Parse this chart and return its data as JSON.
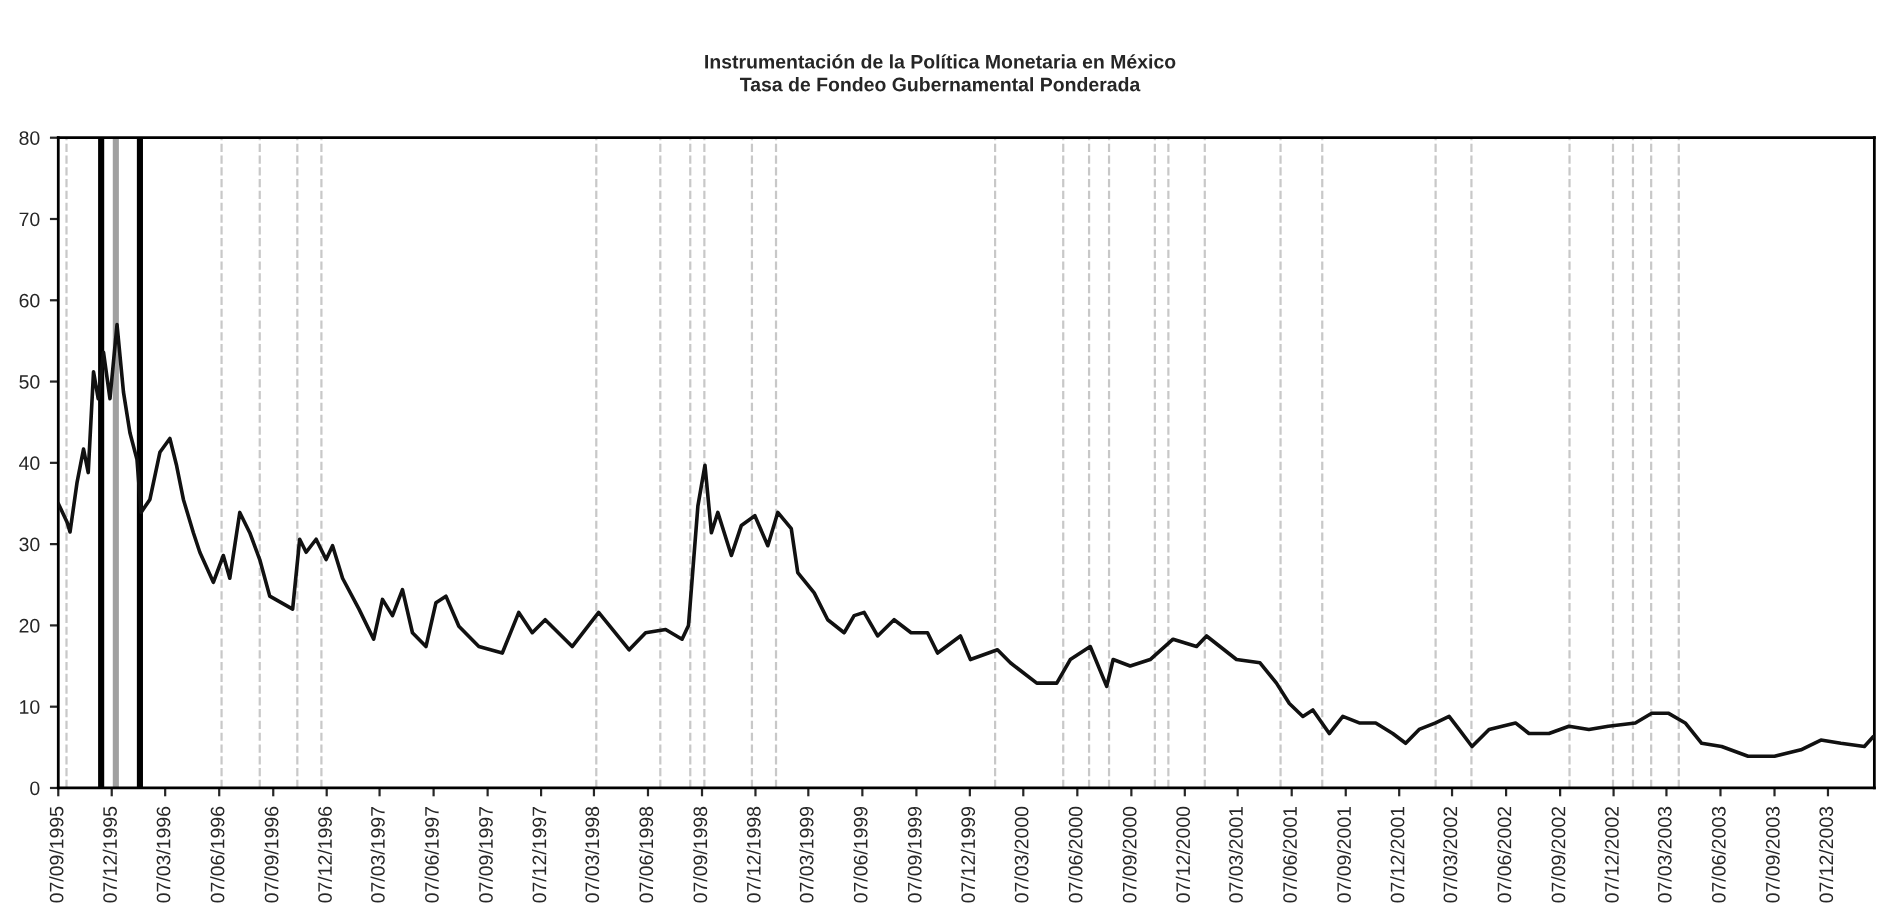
{
  "chart_data": {
    "type": "line",
    "title": "Instrumentación de la Política Monetaria en México",
    "subtitle": "Tasa de Fondeo Gubernamental Ponderada",
    "series": [
      {
        "color": "#111111",
        "x": [
          "1995-09-07",
          "1995-09-22",
          "1995-09-27",
          "1995-10-09",
          "1995-10-20",
          "1995-10-28",
          "1995-11-06",
          "1995-11-14",
          "1995-11-23",
          "1995-12-04",
          "1995-12-16",
          "1995-12-27",
          "1996-01-07",
          "1996-01-19",
          "1996-01-26",
          "1996-02-10",
          "1996-02-27",
          "1996-03-15",
          "1996-03-26",
          "1996-04-07",
          "1996-04-24",
          "1996-05-05",
          "1996-05-28",
          "1996-06-14",
          "1996-06-25",
          "1996-07-12",
          "1996-07-29",
          "1996-08-15",
          "1996-09-01",
          "1996-10-10",
          "1996-10-22",
          "1996-11-02",
          "1996-11-19",
          "1996-12-06",
          "1996-12-17",
          "1997-01-03",
          "1997-01-31",
          "1997-02-25",
          "1997-03-12",
          "1997-03-29",
          "1997-04-15",
          "1997-05-02",
          "1997-05-25",
          "1997-06-11",
          "1997-06-28",
          "1997-07-20",
          "1997-08-23",
          "1997-10-02",
          "1997-10-30",
          "1997-11-22",
          "1997-12-14",
          "1998-01-29",
          "1998-03-15",
          "1998-05-06",
          "1998-06-03",
          "1998-07-07",
          "1998-08-04",
          "1998-08-15",
          "1998-08-31",
          "1998-09-12",
          "1998-09-23",
          "1998-10-04",
          "1998-10-27",
          "1998-11-13",
          "1998-12-06",
          "1998-12-28",
          "1999-01-14",
          "1999-02-06",
          "1999-02-17",
          "1999-03-17",
          "1999-04-09",
          "1999-05-07",
          "1999-05-24",
          "1999-06-10",
          "1999-07-03",
          "1999-07-31",
          "1999-08-29",
          "1999-09-26",
          "1999-10-13",
          "1999-11-21",
          "1999-12-08",
          "2000-01-23",
          "2000-02-14",
          "2000-03-30",
          "2000-05-03",
          "2000-05-26",
          "2000-06-29",
          "2000-07-27",
          "2000-08-07",
          "2000-09-05",
          "2000-10-09",
          "2000-11-17",
          "2000-12-27",
          "2001-01-13",
          "2001-03-05",
          "2001-04-14",
          "2001-05-12",
          "2001-06-03",
          "2001-06-26",
          "2001-07-13",
          "2001-08-10",
          "2001-09-02",
          "2001-09-30",
          "2001-10-28",
          "2001-11-26",
          "2001-12-18",
          "2002-01-10",
          "2002-02-07",
          "2002-03-02",
          "2002-03-19",
          "2002-04-10",
          "2002-05-09",
          "2002-06-23",
          "2002-07-16",
          "2002-08-19",
          "2002-09-22",
          "2002-10-26",
          "2002-11-28",
          "2003-01-13",
          "2003-02-10",
          "2003-03-10",
          "2003-04-08",
          "2003-05-06",
          "2003-06-09",
          "2003-07-24",
          "2003-09-07",
          "2003-10-22",
          "2003-11-25",
          "2003-12-29",
          "2004-02-07",
          "2004-02-22"
        ],
        "values": [
          35,
          32.7,
          31.5,
          37.6,
          41.7,
          38.8,
          51.2,
          47.9,
          53.6,
          47.9,
          57,
          48.7,
          43.7,
          40.4,
          33.9,
          35.5,
          41.3,
          43,
          39.8,
          35.5,
          31.4,
          29,
          25.3,
          28.6,
          25.8,
          33.9,
          31.4,
          28.1,
          23.6,
          22,
          30.6,
          29,
          30.6,
          28.1,
          29.8,
          25.8,
          22,
          18.3,
          23.2,
          21.2,
          24.4,
          19.1,
          17.4,
          22.8,
          23.6,
          19.9,
          17.4,
          16.6,
          21.6,
          19.1,
          20.7,
          17.4,
          21.6,
          17,
          19.1,
          19.5,
          18.3,
          20,
          34.7,
          39.7,
          31.4,
          33.9,
          28.6,
          32.3,
          33.5,
          29.8,
          33.9,
          31.9,
          26.5,
          24,
          20.7,
          19.1,
          21.2,
          21.6,
          18.7,
          20.7,
          19.1,
          19.1,
          16.6,
          18.7,
          15.8,
          17,
          15.4,
          12.9,
          12.9,
          15.8,
          17.4,
          12.5,
          15.8,
          15,
          15.8,
          18.3,
          17.4,
          18.7,
          15.8,
          15.4,
          12.9,
          10.4,
          8.8,
          9.6,
          6.7,
          8.8,
          8,
          8,
          6.7,
          5.5,
          7.2,
          8,
          8.8,
          7.2,
          5.1,
          7.2,
          8,
          6.7,
          6.7,
          7.6,
          7.2,
          7.6,
          8,
          9.2,
          9.2,
          8,
          5.5,
          5.1,
          3.9,
          3.9,
          4.7,
          5.9,
          5.5,
          5.1,
          6.3
        ]
      }
    ],
    "xlim": [
      "1995-09-07",
      "2004-02-24"
    ],
    "xticks": [
      {
        "value": "1995-09-07",
        "label": "07/09/1995"
      },
      {
        "value": "1995-12-07",
        "label": "07/12/1995"
      },
      {
        "value": "1996-03-07",
        "label": "07/03/1996"
      },
      {
        "value": "1996-06-07",
        "label": "07/06/1996"
      },
      {
        "value": "1996-09-07",
        "label": "07/09/1996"
      },
      {
        "value": "1996-12-07",
        "label": "07/12/1996"
      },
      {
        "value": "1997-03-07",
        "label": "07/03/1997"
      },
      {
        "value": "1997-06-07",
        "label": "07/06/1997"
      },
      {
        "value": "1997-09-07",
        "label": "07/09/1997"
      },
      {
        "value": "1997-12-07",
        "label": "07/12/1997"
      },
      {
        "value": "1998-03-07",
        "label": "07/03/1998"
      },
      {
        "value": "1998-06-07",
        "label": "07/06/1998"
      },
      {
        "value": "1998-09-07",
        "label": "07/09/1998"
      },
      {
        "value": "1998-12-07",
        "label": "07/12/1998"
      },
      {
        "value": "1999-03-07",
        "label": "07/03/1999"
      },
      {
        "value": "1999-06-07",
        "label": "07/06/1999"
      },
      {
        "value": "1999-09-07",
        "label": "07/09/1999"
      },
      {
        "value": "1999-12-07",
        "label": "07/12/1999"
      },
      {
        "value": "2000-03-07",
        "label": "07/03/2000"
      },
      {
        "value": "2000-06-07",
        "label": "07/06/2000"
      },
      {
        "value": "2000-09-07",
        "label": "07/09/2000"
      },
      {
        "value": "2000-12-07",
        "label": "07/12/2000"
      },
      {
        "value": "2001-03-07",
        "label": "07/03/2001"
      },
      {
        "value": "2001-06-07",
        "label": "07/06/2001"
      },
      {
        "value": "2001-09-07",
        "label": "07/09/2001"
      },
      {
        "value": "2001-12-07",
        "label": "07/12/2001"
      },
      {
        "value": "2002-03-07",
        "label": "07/03/2002"
      },
      {
        "value": "2002-06-07",
        "label": "07/06/2002"
      },
      {
        "value": "2002-09-07",
        "label": "07/09/2002"
      },
      {
        "value": "2002-12-07",
        "label": "07/12/2002"
      },
      {
        "value": "2003-03-07",
        "label": "07/03/2003"
      },
      {
        "value": "2003-06-07",
        "label": "07/06/2003"
      },
      {
        "value": "2003-09-07",
        "label": "07/09/2003"
      },
      {
        "value": "2003-12-07",
        "label": "07/12/2003"
      }
    ],
    "ylim": [
      0,
      80
    ],
    "yticks": [
      0,
      10,
      20,
      30,
      40,
      50,
      60,
      70,
      80
    ],
    "ref_lines": [
      {
        "axis": "x",
        "value": "1995-09-21",
        "color": "#c8c8c8",
        "line_style": "dashed"
      },
      {
        "axis": "x",
        "value": "1995-11-19",
        "color": "#000000",
        "line_style": "solid"
      },
      {
        "axis": "x",
        "value": "1995-12-14",
        "color": "#a0a0a0",
        "line_style": "solid"
      },
      {
        "axis": "x",
        "value": "1996-01-24",
        "color": "#000000",
        "line_style": "solid"
      },
      {
        "axis": "x",
        "value": "1996-06-11",
        "color": "#c8c8c8",
        "line_style": "dashed"
      },
      {
        "axis": "x",
        "value": "1996-08-15",
        "color": "#c8c8c8",
        "line_style": "dashed"
      },
      {
        "axis": "x",
        "value": "1996-10-18",
        "color": "#c8c8c8",
        "line_style": "dashed"
      },
      {
        "axis": "x",
        "value": "1996-11-28",
        "color": "#c8c8c8",
        "line_style": "dashed"
      },
      {
        "axis": "x",
        "value": "1998-03-11",
        "color": "#c8c8c8",
        "line_style": "dashed"
      },
      {
        "axis": "x",
        "value": "1998-06-28",
        "color": "#c8c8c8",
        "line_style": "dashed"
      },
      {
        "axis": "x",
        "value": "1998-08-18",
        "color": "#c8c8c8",
        "line_style": "dashed"
      },
      {
        "axis": "x",
        "value": "1998-09-11",
        "color": "#c8c8c8",
        "line_style": "dashed"
      },
      {
        "axis": "x",
        "value": "1998-12-01",
        "color": "#c8c8c8",
        "line_style": "dashed"
      },
      {
        "axis": "x",
        "value": "1999-01-11",
        "color": "#c8c8c8",
        "line_style": "dashed"
      },
      {
        "axis": "x",
        "value": "2000-01-19",
        "color": "#c8c8c8",
        "line_style": "dashed"
      },
      {
        "axis": "x",
        "value": "2000-05-14",
        "color": "#c8c8c8",
        "line_style": "dashed"
      },
      {
        "axis": "x",
        "value": "2000-06-27",
        "color": "#c8c8c8",
        "line_style": "dashed"
      },
      {
        "axis": "x",
        "value": "2000-07-31",
        "color": "#c8c8c8",
        "line_style": "dashed"
      },
      {
        "axis": "x",
        "value": "2000-10-17",
        "color": "#c8c8c8",
        "line_style": "dashed"
      },
      {
        "axis": "x",
        "value": "2000-11-09",
        "color": "#c8c8c8",
        "line_style": "dashed"
      },
      {
        "axis": "x",
        "value": "2001-01-10",
        "color": "#c8c8c8",
        "line_style": "dashed"
      },
      {
        "axis": "x",
        "value": "2001-05-19",
        "color": "#c8c8c8",
        "line_style": "dashed"
      },
      {
        "axis": "x",
        "value": "2001-07-29",
        "color": "#c8c8c8",
        "line_style": "dashed"
      },
      {
        "axis": "x",
        "value": "2002-02-07",
        "color": "#c8c8c8",
        "line_style": "dashed"
      },
      {
        "axis": "x",
        "value": "2002-04-09",
        "color": "#c8c8c8",
        "line_style": "dashed"
      },
      {
        "axis": "x",
        "value": "2002-09-23",
        "color": "#c8c8c8",
        "line_style": "dashed"
      },
      {
        "axis": "x",
        "value": "2002-12-06",
        "color": "#c8c8c8",
        "line_style": "dashed"
      },
      {
        "axis": "x",
        "value": "2003-01-09",
        "color": "#c8c8c8",
        "line_style": "dashed"
      },
      {
        "axis": "x",
        "value": "2003-02-09",
        "color": "#c8c8c8",
        "line_style": "dashed"
      },
      {
        "axis": "x",
        "value": "2003-03-28",
        "color": "#c8c8c8",
        "line_style": "dashed"
      }
    ],
    "grid": false,
    "legend": false,
    "marker": "none",
    "line_style": "solid"
  }
}
